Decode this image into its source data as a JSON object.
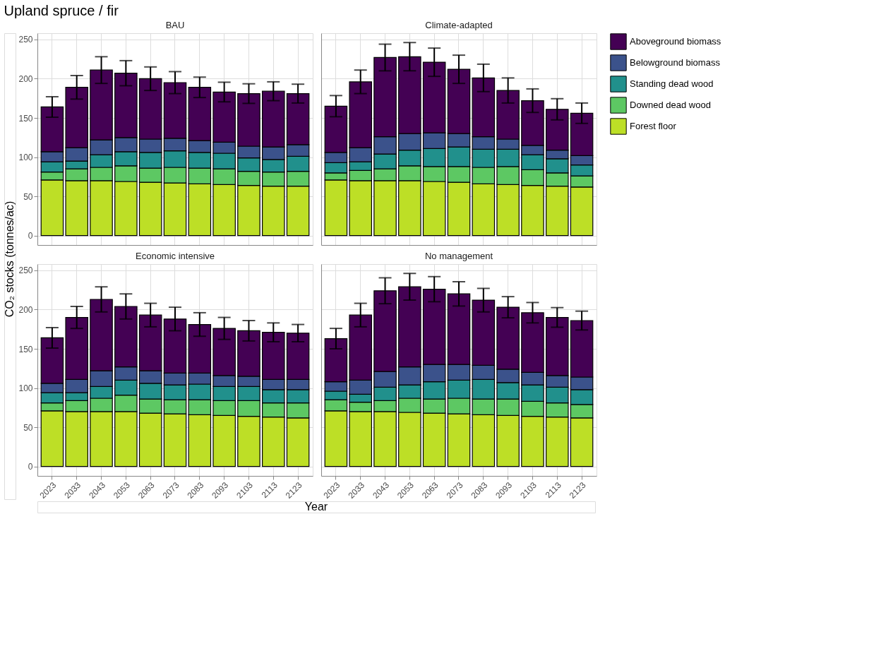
{
  "chart_data": [
    {
      "type": "bar",
      "title": "BAU",
      "annotations": [
        "Upland spruce / fir"
      ],
      "ylabel": "CO₂ stocks (tonnes/ac)",
      "stacked": true,
      "legend": "right",
      "grid": true,
      "tick_labels": "y",
      "categories": [
        "2023",
        "2033",
        "2043",
        "2053",
        "2063",
        "2073",
        "2083",
        "2093",
        "2103",
        "2113",
        "2123"
      ],
      "ylim": [
        -12,
        258
      ],
      "yticks": [
        0,
        50,
        100,
        150,
        200,
        250
      ],
      "series": [
        {
          "name": "Forest floor",
          "color": "#bddf26",
          "values": [
            71,
            70,
            70,
            69,
            68,
            67,
            66,
            65,
            64,
            63,
            63
          ]
        },
        {
          "name": "Downed dead wood",
          "color": "#5dc863",
          "values": [
            10,
            15,
            17,
            20,
            18,
            20,
            20,
            20,
            18,
            18,
            19
          ]
        },
        {
          "name": "Standing dead wood",
          "color": "#21908c",
          "values": [
            13,
            10,
            16,
            18,
            20,
            21,
            20,
            20,
            17,
            16,
            19
          ]
        },
        {
          "name": "Belowground biomass",
          "color": "#3b528b",
          "values": [
            13,
            17,
            19,
            18,
            17,
            16,
            15,
            14,
            15,
            16,
            15
          ]
        },
        {
          "name": "Aboveground biomass",
          "color": "#440154",
          "values": [
            57,
            77,
            89,
            82,
            77,
            71,
            68,
            64,
            67,
            71,
            65
          ],
          "errors": [
            13,
            15,
            17,
            16,
            15,
            14,
            13,
            12.5,
            12.5,
            12,
            12
          ]
        }
      ]
    },
    {
      "type": "bar",
      "title": "Climate-adapted",
      "stacked": true,
      "grid": true,
      "tick_labels": false,
      "categories": [
        "2023",
        "2033",
        "2043",
        "2053",
        "2063",
        "2073",
        "2083",
        "2093",
        "2103",
        "2113",
        "2123"
      ],
      "ylim": [
        -12,
        258
      ],
      "yticks": [
        0,
        50,
        100,
        150,
        200,
        250
      ],
      "series": [
        {
          "name": "Forest floor",
          "color": "#bddf26",
          "values": [
            71,
            70,
            70,
            70,
            69,
            68,
            66,
            65,
            64,
            63,
            62
          ]
        },
        {
          "name": "Downed dead wood",
          "color": "#5dc863",
          "values": [
            9,
            13,
            15,
            19,
            19,
            20,
            21,
            23,
            20,
            17,
            14
          ]
        },
        {
          "name": "Standing dead wood",
          "color": "#21908c",
          "values": [
            13,
            11,
            19,
            20,
            23,
            25,
            23,
            22,
            19,
            18,
            14
          ]
        },
        {
          "name": "Belowground biomass",
          "color": "#3b528b",
          "values": [
            13,
            18,
            22,
            21,
            20,
            17,
            16,
            13,
            12,
            11,
            12
          ]
        },
        {
          "name": "Aboveground biomass",
          "color": "#440154",
          "values": [
            59,
            84,
            101,
            98,
            90,
            82,
            75,
            62,
            57,
            52,
            54
          ],
          "errors": [
            13.5,
            15,
            17,
            18,
            18,
            18,
            17.5,
            16,
            15,
            13.5,
            13
          ]
        }
      ]
    },
    {
      "type": "bar",
      "title": "Economic intensive",
      "xlabel": "Year",
      "stacked": true,
      "grid": true,
      "categories": [
        "2023",
        "2033",
        "2043",
        "2053",
        "2063",
        "2073",
        "2083",
        "2093",
        "2103",
        "2113",
        "2123"
      ],
      "ylim": [
        -12,
        258
      ],
      "yticks": [
        0,
        50,
        100,
        150,
        200,
        250
      ],
      "series": [
        {
          "name": "Forest floor",
          "color": "#bddf26",
          "values": [
            71,
            70,
            70,
            70,
            68,
            67,
            66,
            65,
            64,
            63,
            62
          ]
        },
        {
          "name": "Downed dead wood",
          "color": "#5dc863",
          "values": [
            10,
            14,
            17,
            21,
            18,
            18,
            19,
            19,
            20,
            18,
            19
          ]
        },
        {
          "name": "Standing dead wood",
          "color": "#21908c",
          "values": [
            13,
            10,
            15,
            19,
            20,
            19,
            20,
            18,
            18,
            17,
            17
          ]
        },
        {
          "name": "Belowground biomass",
          "color": "#3b528b",
          "values": [
            12,
            17,
            20,
            17,
            16,
            15,
            14,
            14,
            13,
            13,
            13
          ]
        },
        {
          "name": "Aboveground biomass",
          "color": "#440154",
          "values": [
            58,
            79,
            91,
            77,
            71,
            69,
            62,
            60,
            58,
            60,
            59
          ],
          "errors": [
            13,
            14,
            16,
            16,
            15,
            15,
            15,
            14,
            13,
            12,
            11
          ]
        }
      ]
    },
    {
      "type": "bar",
      "title": "No management",
      "stacked": true,
      "grid": true,
      "tick_labels": "x",
      "categories": [
        "2023",
        "2033",
        "2043",
        "2053",
        "2063",
        "2073",
        "2083",
        "2093",
        "2103",
        "2113",
        "2123"
      ],
      "ylim": [
        -12,
        258
      ],
      "yticks": [
        0,
        50,
        100,
        150,
        200,
        250
      ],
      "series": [
        {
          "name": "Forest floor",
          "color": "#bddf26",
          "values": [
            71,
            70,
            70,
            69,
            68,
            67,
            66,
            65,
            64,
            63,
            62
          ]
        },
        {
          "name": "Downed dead wood",
          "color": "#5dc863",
          "values": [
            14,
            12,
            14,
            18,
            18,
            20,
            20,
            21,
            19,
            18,
            17
          ]
        },
        {
          "name": "Standing dead wood",
          "color": "#21908c",
          "values": [
            11,
            10,
            17,
            17,
            22,
            23,
            25,
            21,
            21,
            20,
            19
          ]
        },
        {
          "name": "Belowground biomass",
          "color": "#3b528b",
          "values": [
            12,
            18,
            20,
            23,
            22,
            20,
            18,
            17,
            16,
            15,
            16
          ]
        },
        {
          "name": "Aboveground biomass",
          "color": "#440154",
          "values": [
            55,
            83,
            103,
            102,
            96,
            90,
            83,
            79,
            76,
            74,
            72
          ],
          "errors": [
            13,
            15,
            16.5,
            17,
            16,
            15.5,
            15,
            13.5,
            13,
            12.5,
            12
          ]
        }
      ]
    }
  ]
}
